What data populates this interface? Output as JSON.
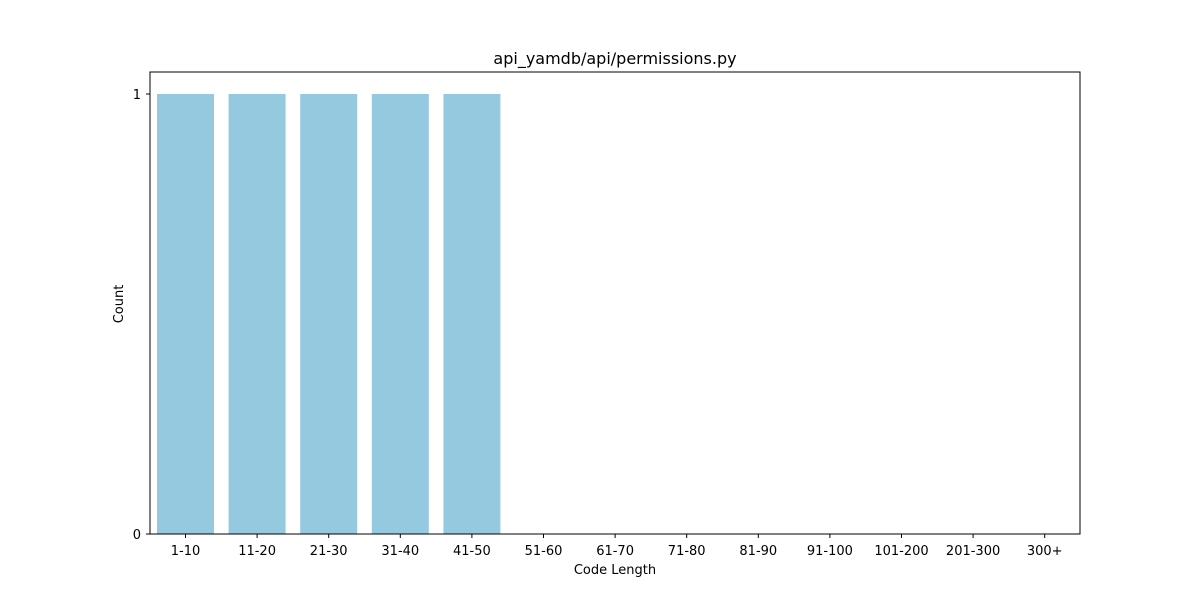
{
  "chart_data": {
    "type": "bar",
    "title": "api_yamdb/api/permissions.py",
    "xlabel": "Code Length",
    "ylabel": "Count",
    "categories": [
      "1-10",
      "11-20",
      "21-30",
      "31-40",
      "41-50",
      "51-60",
      "61-70",
      "71-80",
      "81-90",
      "91-100",
      "101-200",
      "201-300",
      "300+"
    ],
    "values": [
      1,
      1,
      1,
      1,
      1,
      0,
      0,
      0,
      0,
      0,
      0,
      0,
      0
    ],
    "ylim": [
      0,
      1
    ],
    "yticks": [
      0,
      1
    ],
    "bar_color": "#95c9df",
    "grid": false,
    "legend": "none"
  }
}
